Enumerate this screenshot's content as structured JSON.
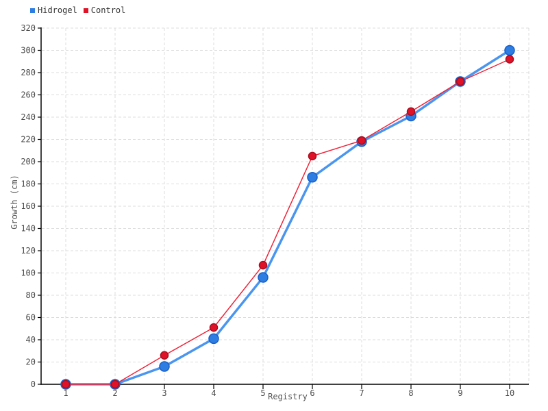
{
  "chart_data": {
    "type": "line",
    "x": [
      1,
      2,
      3,
      4,
      5,
      6,
      7,
      8,
      9,
      10
    ],
    "series": [
      {
        "name": "Hidrogel",
        "values": [
          0,
          0,
          16,
          41,
          96,
          186,
          218,
          241,
          272,
          300
        ],
        "line_color": "#4a95ef",
        "line_width": 3.5,
        "marker_color": "#2d7de2",
        "marker_stroke": "#1a5fc8",
        "marker_radius": 7
      },
      {
        "name": "Control",
        "values": [
          0,
          0,
          26,
          51,
          107,
          205,
          219,
          245,
          272,
          292
        ],
        "line_color": "#ef2438",
        "line_width": 1.5,
        "marker_color": "#e01228",
        "marker_stroke": "#a80d1e",
        "marker_radius": 5.5
      }
    ],
    "title": "",
    "xlabel": "Registry",
    "ylabel": "Growth (cm)",
    "xlim": [
      0.5,
      10.4
    ],
    "ylim": [
      0,
      320
    ],
    "y_tick_step": 20,
    "x_tick_labels": [
      "1",
      "2",
      "3",
      "4",
      "5",
      "6",
      "7",
      "8",
      "9",
      "10"
    ],
    "grid": true,
    "grid_color": "#dcdcdc",
    "axis_color": "#000000",
    "tick_label_color": "#4a4a4a",
    "legend_position": "top-left"
  }
}
